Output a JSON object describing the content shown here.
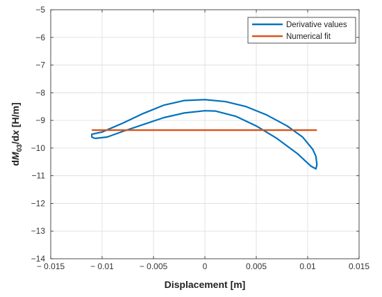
{
  "chart_data": {
    "type": "line",
    "title": "",
    "xlabel": "Displacement [m]",
    "ylabel_parts": {
      "d": "d",
      "M": "M",
      "sub": "03",
      "rest": "/d",
      "x": "x",
      "unit": " [H/m]"
    },
    "xlim": [
      -0.015,
      0.015
    ],
    "ylim": [
      -14,
      -5
    ],
    "xticks": [
      -0.015,
      -0.01,
      -0.005,
      0,
      0.005,
      0.01,
      0.015
    ],
    "xtick_labels": [
      "− 0.015",
      "− 0.01",
      "− 0.005",
      "0",
      "0.005",
      "0.01",
      "0.015"
    ],
    "yticks": [
      -14,
      -13,
      -12,
      -11,
      -10,
      -9,
      -8,
      -7,
      -6,
      -5
    ],
    "ytick_labels": [
      "−14",
      "−13",
      "−12",
      "−11",
      "−10",
      "−9",
      "−8",
      "−7",
      "−6",
      "−5"
    ],
    "grid": true,
    "legend_position": "top-right",
    "series": [
      {
        "name": "Derivative values",
        "color": "#0072BD",
        "x": [
          -0.0107,
          -0.0095,
          -0.008,
          -0.006,
          -0.004,
          -0.002,
          0.0,
          0.001,
          0.003,
          0.005,
          0.007,
          0.009,
          0.0103,
          0.0108,
          0.0109,
          0.0108,
          0.0105,
          0.0095,
          0.008,
          0.006,
          0.004,
          0.002,
          0.0,
          -0.002,
          -0.004,
          -0.006,
          -0.008,
          -0.01,
          -0.011,
          -0.011,
          -0.0107
        ],
        "y": [
          -9.65,
          -9.6,
          -9.4,
          -9.15,
          -8.9,
          -8.73,
          -8.65,
          -8.66,
          -8.85,
          -9.2,
          -9.65,
          -10.2,
          -10.65,
          -10.75,
          -10.6,
          -10.3,
          -10.05,
          -9.6,
          -9.2,
          -8.8,
          -8.5,
          -8.32,
          -8.25,
          -8.28,
          -8.45,
          -8.75,
          -9.1,
          -9.42,
          -9.5,
          -9.6,
          -9.65
        ]
      },
      {
        "name": "Numerical fit",
        "color": "#D95319",
        "x": [
          -0.011,
          0.0109
        ],
        "y": [
          -9.35,
          -9.35
        ]
      }
    ]
  }
}
